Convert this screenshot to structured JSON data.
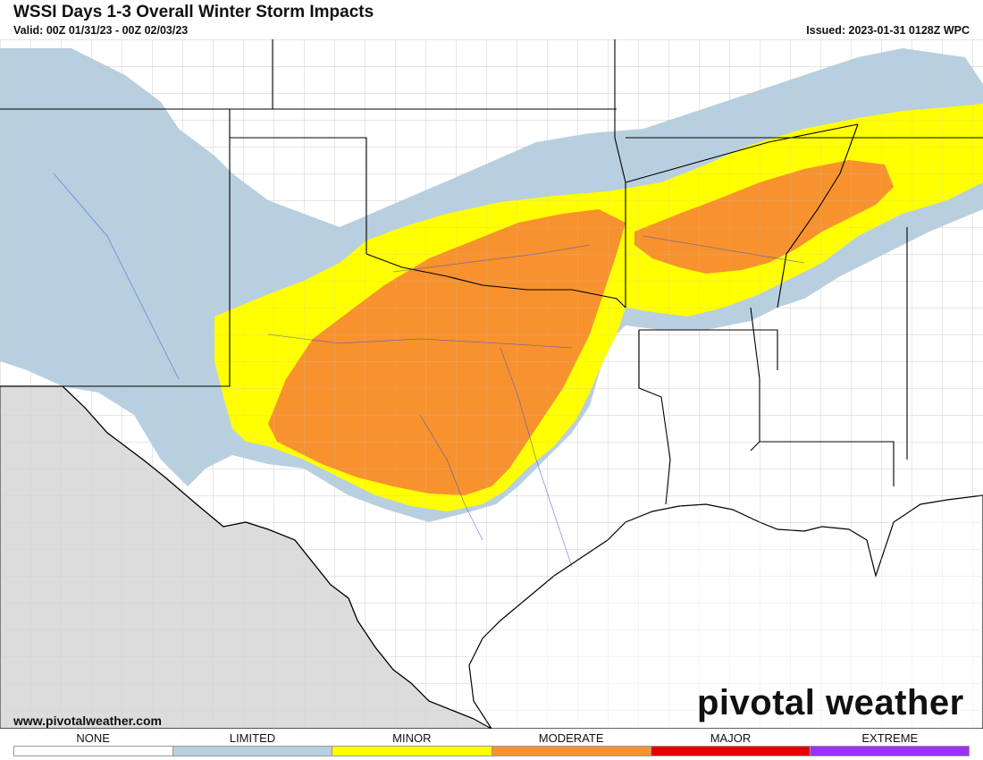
{
  "header": {
    "title": "WSSI Days 1-3 Overall Winter Storm Impacts",
    "valid": "Valid: 00Z 01/31/23 - 00Z 02/03/23",
    "issued": "Issued: 2023-01-31 0128Z WPC"
  },
  "footer": {
    "website": "www.pivotalweather.com",
    "brand": "pivotal weather"
  },
  "legend": {
    "items": [
      {
        "label": "NONE",
        "color": "#ffffff"
      },
      {
        "label": "LIMITED",
        "color": "#b8cfe0"
      },
      {
        "label": "MINOR",
        "color": "#ffff00"
      },
      {
        "label": "MODERATE",
        "color": "#f7922e"
      },
      {
        "label": "MAJOR",
        "color": "#e60000"
      },
      {
        "label": "EXTREME",
        "color": "#9b30ff"
      }
    ]
  },
  "map": {
    "colors": {
      "land": "#ffffff",
      "outside_domain": "#dcdcdc",
      "state_border": "#000000",
      "county_border": "#bdbdbd",
      "rivers": "#3a4bd6"
    }
  }
}
